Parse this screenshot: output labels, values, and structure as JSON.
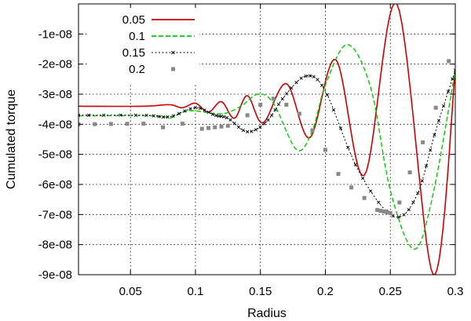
{
  "chart_data": {
    "type": "line",
    "xlabel": "Radius",
    "ylabel": "Cumulated torque",
    "xlim": [
      0.01,
      0.3
    ],
    "ylim": [
      -9e-08,
      0
    ],
    "x_ticks": [
      0.05,
      0.1,
      0.15,
      0.2,
      0.25,
      0.3
    ],
    "x_tick_labels": [
      "0.05",
      "0.1",
      "0.15",
      "0.2",
      "0.25",
      "0.3"
    ],
    "y_ticks": [
      -1e-08,
      -2e-08,
      -3e-08,
      -4e-08,
      -5e-08,
      -6e-08,
      -7e-08,
      -8e-08,
      -9e-08
    ],
    "y_tick_labels": [
      "-1e-08",
      "-2e-08",
      "-3e-08",
      "-4e-08",
      "-5e-08",
      "-6e-08",
      "-7e-08",
      "-8e-08",
      "-9e-08"
    ],
    "grid": true,
    "legend_position": "top-left",
    "series": [
      {
        "name": "0.05",
        "style": "solid",
        "color": "#cc0000",
        "points": [
          [
            0.01,
            -3.4e-08
          ],
          [
            0.06,
            -3.4e-08
          ],
          [
            0.08,
            -3.35e-08
          ],
          [
            0.09,
            -3.45e-08
          ],
          [
            0.1,
            -3.3e-08
          ],
          [
            0.11,
            -3.6e-08
          ],
          [
            0.12,
            -3.25e-08
          ],
          [
            0.13,
            -3.8e-08
          ],
          [
            0.14,
            -3.05e-08
          ],
          [
            0.152,
            -3.95e-08
          ],
          [
            0.17,
            -2.65e-08
          ],
          [
            0.188,
            -4.45e-08
          ],
          [
            0.208,
            -1.85e-08
          ],
          [
            0.23,
            -5.7e-08
          ],
          [
            0.255,
            0.0
          ],
          [
            0.283,
            -9e-08
          ],
          [
            0.3,
            -2.2e-08
          ]
        ]
      },
      {
        "name": "0.1",
        "style": "dashed",
        "color": "#00cc00",
        "points": [
          [
            0.01,
            -3.72e-08
          ],
          [
            0.07,
            -3.72e-08
          ],
          [
            0.08,
            -3.8e-08
          ],
          [
            0.095,
            -3.55e-08
          ],
          [
            0.12,
            -3.65e-08
          ],
          [
            0.135,
            -3.4e-08
          ],
          [
            0.148,
            -3e-08
          ],
          [
            0.16,
            -3.3e-08
          ],
          [
            0.178,
            -4.85e-08
          ],
          [
            0.19,
            -4.2e-08
          ],
          [
            0.2,
            -2.7e-08
          ],
          [
            0.217,
            -1.35e-08
          ],
          [
            0.235,
            -2.8e-08
          ],
          [
            0.25,
            -6.2e-08
          ],
          [
            0.268,
            -8.15e-08
          ],
          [
            0.282,
            -6.5e-08
          ],
          [
            0.3,
            -2.2e-08
          ]
        ]
      },
      {
        "name": "0.15",
        "style": "dotted-cross",
        "color": "#000000",
        "points": [
          [
            0.01,
            -3.7e-08
          ],
          [
            0.06,
            -3.7e-08
          ],
          [
            0.08,
            -3.75e-08
          ],
          [
            0.1,
            -3.45e-08
          ],
          [
            0.115,
            -3.7e-08
          ],
          [
            0.125,
            -3.8e-08
          ],
          [
            0.14,
            -4.25e-08
          ],
          [
            0.155,
            -3.9e-08
          ],
          [
            0.168,
            -3.1e-08
          ],
          [
            0.185,
            -2.4e-08
          ],
          [
            0.2,
            -2.9e-08
          ],
          [
            0.225,
            -5.5e-08
          ],
          [
            0.252,
            -7.05e-08
          ],
          [
            0.27,
            -6.4e-08
          ],
          [
            0.285,
            -4.2e-08
          ],
          [
            0.3,
            -2.2e-08
          ]
        ]
      },
      {
        "name": "0.2",
        "style": "squares",
        "color": "#888888",
        "points": [
          [
            0.01,
            -4e-08
          ],
          [
            0.06,
            -3.98e-08
          ],
          [
            0.075,
            -4.1e-08
          ],
          [
            0.09,
            -3.98e-08
          ],
          [
            0.105,
            -4.15e-08
          ],
          [
            0.125,
            -4.05e-08
          ],
          [
            0.14,
            -3.7e-08
          ],
          [
            0.15,
            -3.35e-08
          ],
          [
            0.16,
            -3.15e-08
          ],
          [
            0.17,
            -3.35e-08
          ],
          [
            0.18,
            -3.65e-08
          ],
          [
            0.19,
            -4.2e-08
          ],
          [
            0.2,
            -4.85e-08
          ],
          [
            0.21,
            -5.65e-08
          ],
          [
            0.22,
            -6.1e-08
          ],
          [
            0.23,
            -6.45e-08
          ],
          [
            0.24,
            -6.85e-08
          ],
          [
            0.25,
            -6.95e-08
          ],
          [
            0.257,
            -6.6e-08
          ],
          [
            0.265,
            -5.6e-08
          ],
          [
            0.275,
            -4.6e-08
          ],
          [
            0.285,
            -3.45e-08
          ],
          [
            0.295,
            -1.9e-08
          ]
        ]
      }
    ]
  }
}
